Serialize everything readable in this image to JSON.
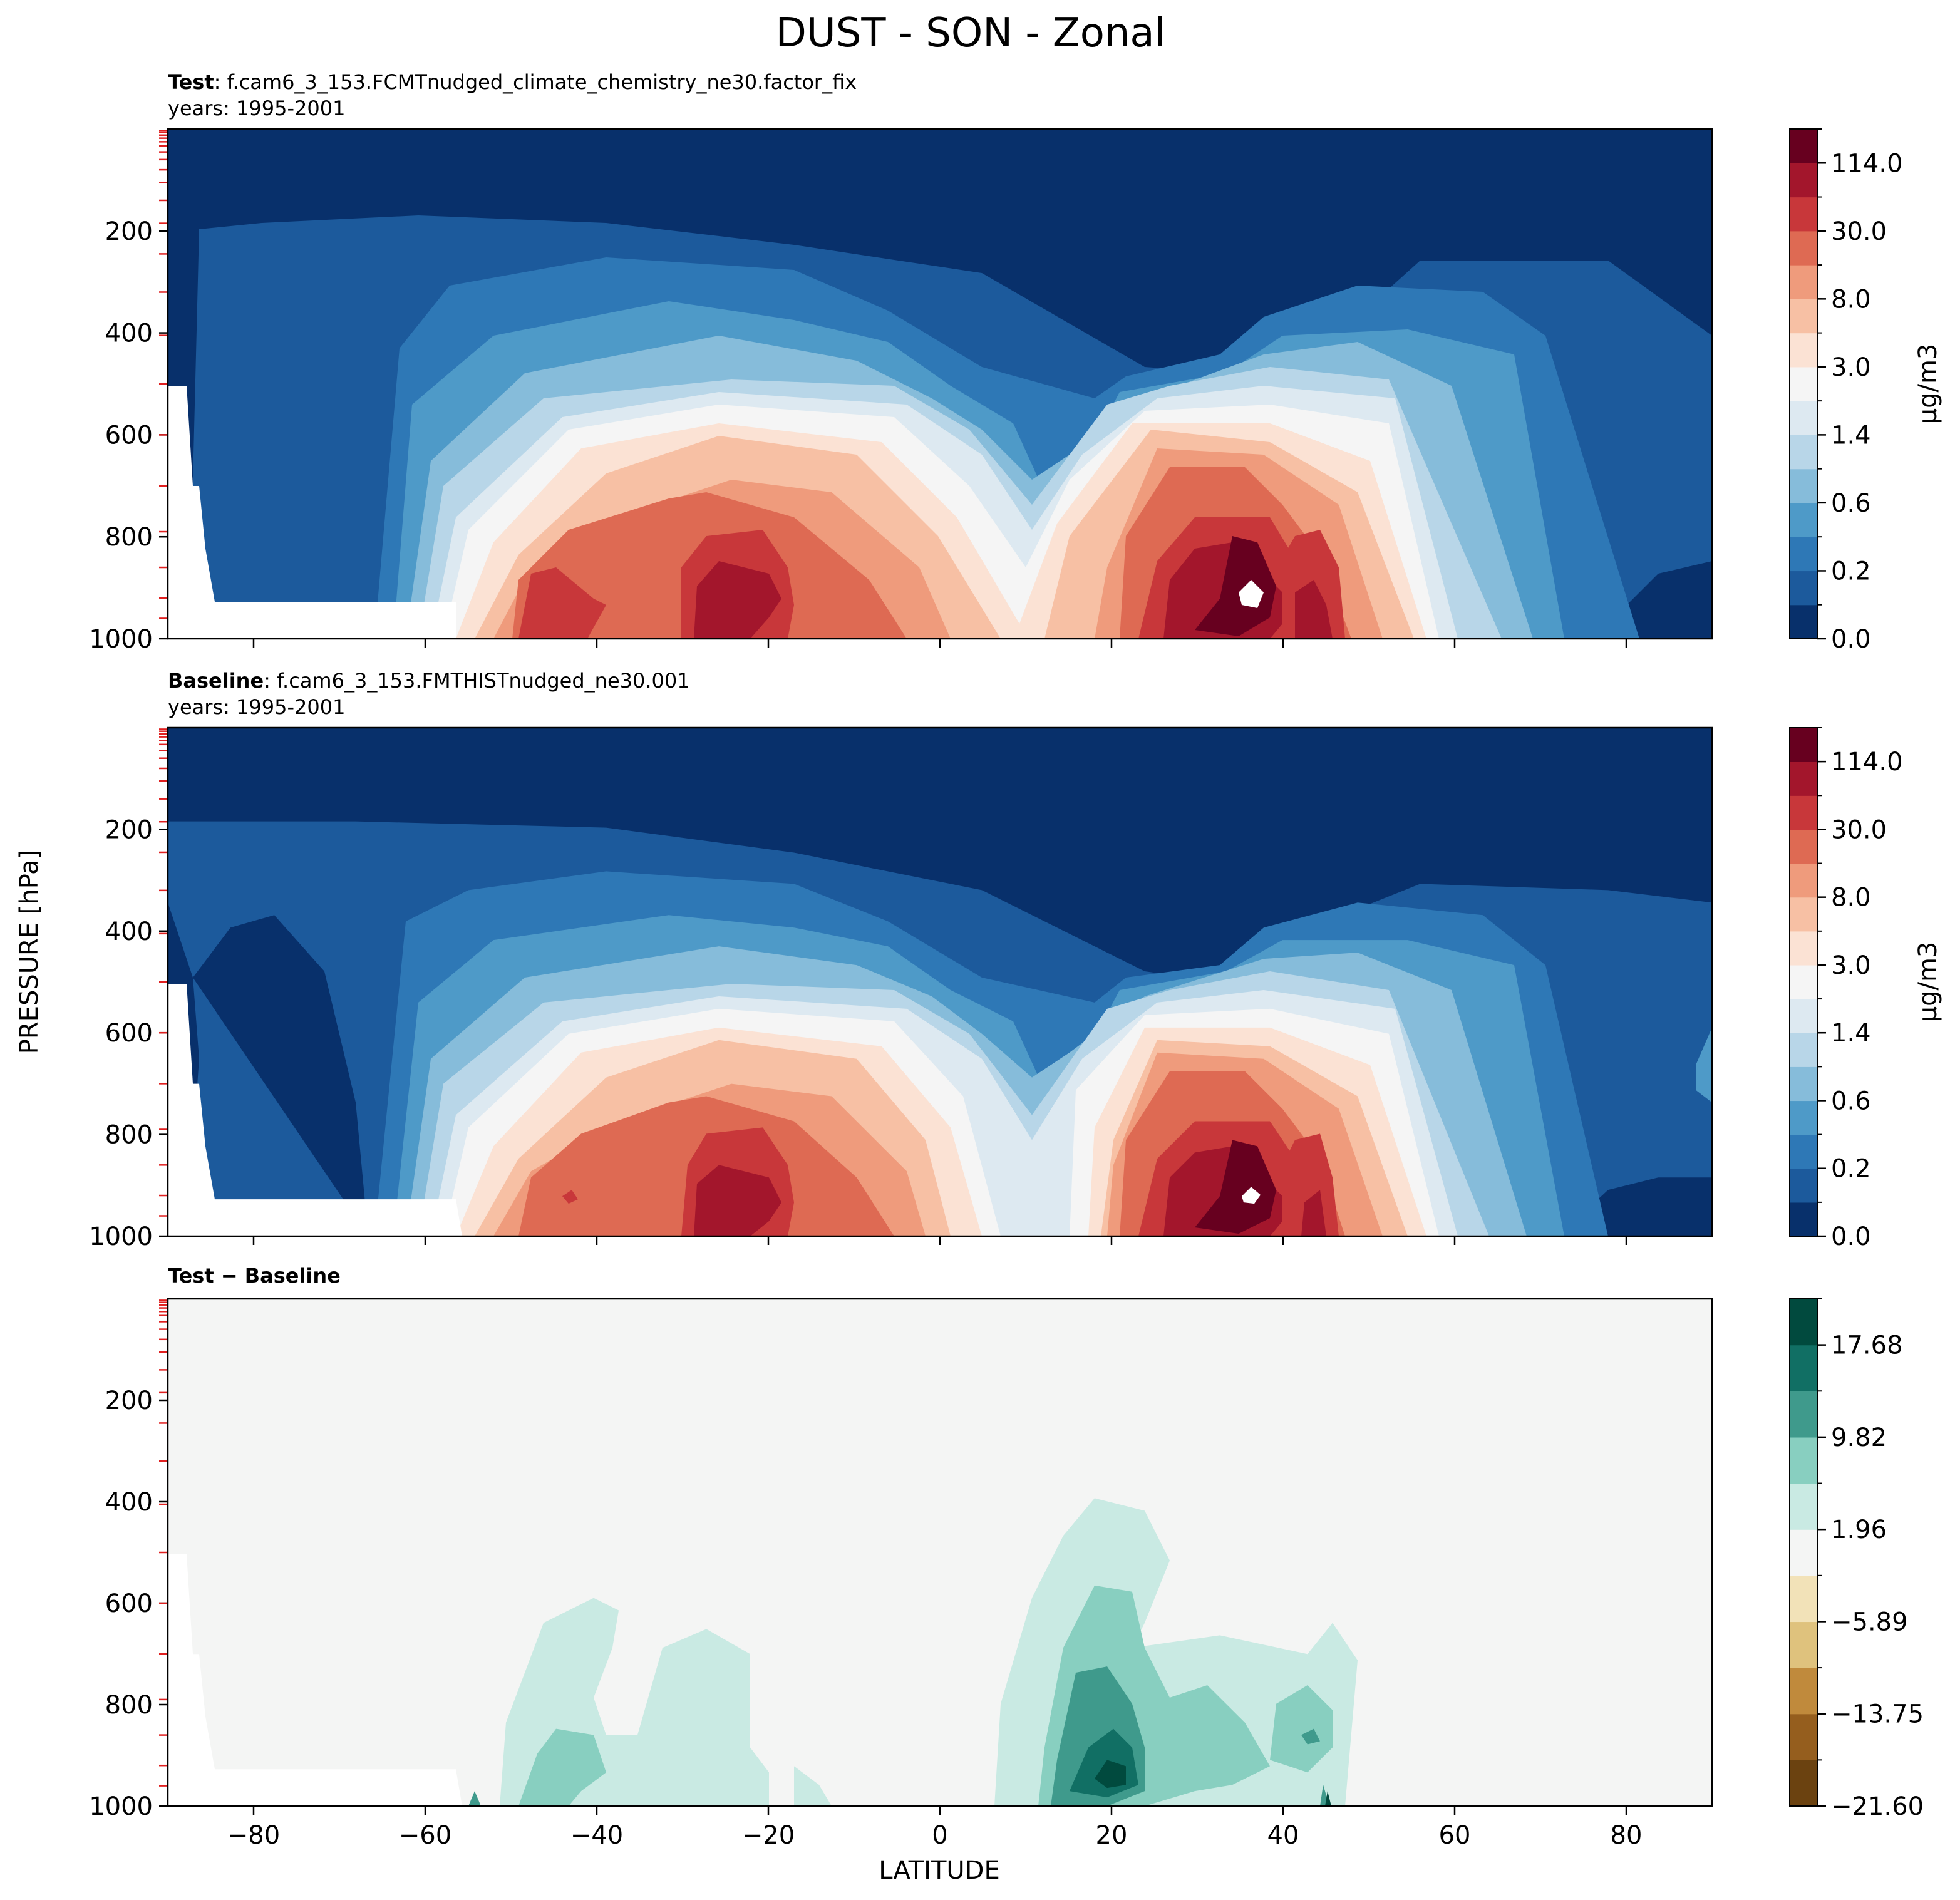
{
  "chart_data": {
    "type": "contour",
    "title": "DUST - SON - Zonal",
    "ylabel": "PRESSURE [hPa]",
    "xlabel": "LATITUDE",
    "x_ticks": [
      -80,
      -60,
      -40,
      -20,
      0,
      20,
      40,
      60,
      80
    ],
    "y_ticks": [
      200,
      400,
      600,
      800,
      1000
    ],
    "xlim": [
      -90,
      90
    ],
    "ylim": [
      1000,
      0
    ],
    "grid": false,
    "panels": [
      {
        "id": "test",
        "title_bold": "Test",
        "title_rest": ": f.cam6_3_153.FCMTnudged_climate_chemistry_ne30.factor_fix",
        "subtitle": "years: 1995-2001",
        "colorbar_label": "μg/m3",
        "colorbar_ticks": [
          "0.0",
          "0.2",
          "0.6",
          "1.4",
          "3.0",
          "8.0",
          "30.0",
          "114.0"
        ],
        "colors": [
          "#08306b",
          "#1c5a9c",
          "#2e78b6",
          "#4e9ac8",
          "#86bcda",
          "#b8d6e8",
          "#dde9f1",
          "#f5f5f5",
          "#fbe2d4",
          "#f7c0a4",
          "#ef9b7c",
          "#de6a53",
          "#c8373a",
          "#a3162c",
          "#67001f"
        ]
      },
      {
        "id": "baseline",
        "title_bold": "Baseline",
        "title_rest": ": f.cam6_3_153.FMTHISTnudged_ne30.001",
        "subtitle": "years: 1995-2001",
        "colorbar_label": "μg/m3",
        "colorbar_ticks": [
          "0.0",
          "0.2",
          "0.6",
          "1.4",
          "3.0",
          "8.0",
          "30.0",
          "114.0"
        ],
        "colors": [
          "#08306b",
          "#1c5a9c",
          "#2e78b6",
          "#4e9ac8",
          "#86bcda",
          "#b8d6e8",
          "#dde9f1",
          "#f5f5f5",
          "#fbe2d4",
          "#f7c0a4",
          "#ef9b7c",
          "#de6a53",
          "#c8373a",
          "#a3162c",
          "#67001f"
        ]
      },
      {
        "id": "diff",
        "title_bold": "Test",
        "title_rest": " − Baseline",
        "subtitle": "",
        "colorbar_label": "",
        "colorbar_ticks": [
          "−21.60",
          "−13.75",
          "−5.89",
          "1.96",
          "9.82",
          "17.68"
        ],
        "colors": [
          "#6b4210",
          "#955e1e",
          "#c08a3c",
          "#dfc27d",
          "#f2e2b8",
          "#f4f5f4",
          "#c9eae3",
          "#88cfc0",
          "#3f9a8c",
          "#116f64",
          "#014a3e"
        ]
      }
    ]
  }
}
